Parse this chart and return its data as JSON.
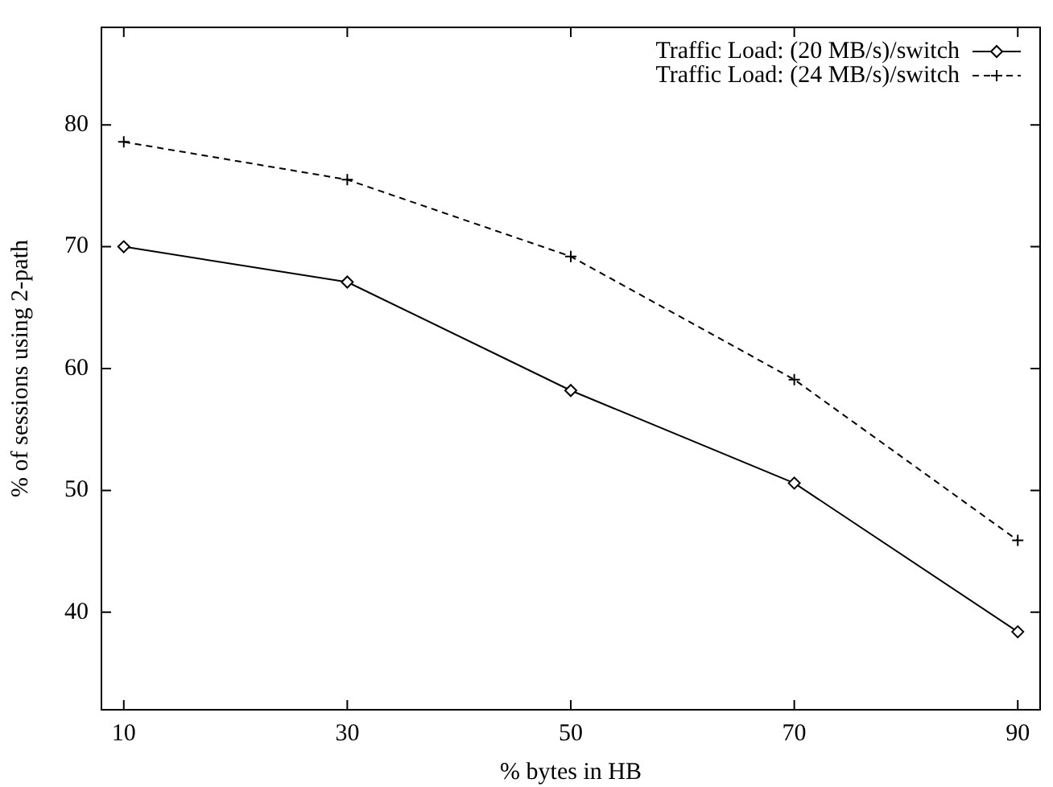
{
  "chart_data": {
    "type": "line",
    "xlabel": "% bytes in HB",
    "ylabel": "% of sessions using 2-path",
    "x": [
      10,
      30,
      50,
      70,
      90
    ],
    "xlim": [
      8,
      92
    ],
    "xticks": [
      10,
      30,
      50,
      70,
      90
    ],
    "ylim": [
      32,
      88
    ],
    "yticks": [
      40,
      50,
      60,
      70,
      80
    ],
    "grid": false,
    "legend": "top right",
    "series": [
      {
        "name": "Traffic Load: (20 MB/s)/switch",
        "color": "#000000",
        "marker": "diamond",
        "line_style": "solid",
        "values": [
          70.0,
          67.1,
          58.2,
          50.6,
          38.4
        ]
      },
      {
        "name": "Traffic Load: (24 MB/s)/switch",
        "color": "#000000",
        "marker": "cross",
        "line_style": "dashed",
        "values": [
          78.6,
          75.5,
          69.2,
          59.1,
          45.9
        ]
      }
    ]
  }
}
